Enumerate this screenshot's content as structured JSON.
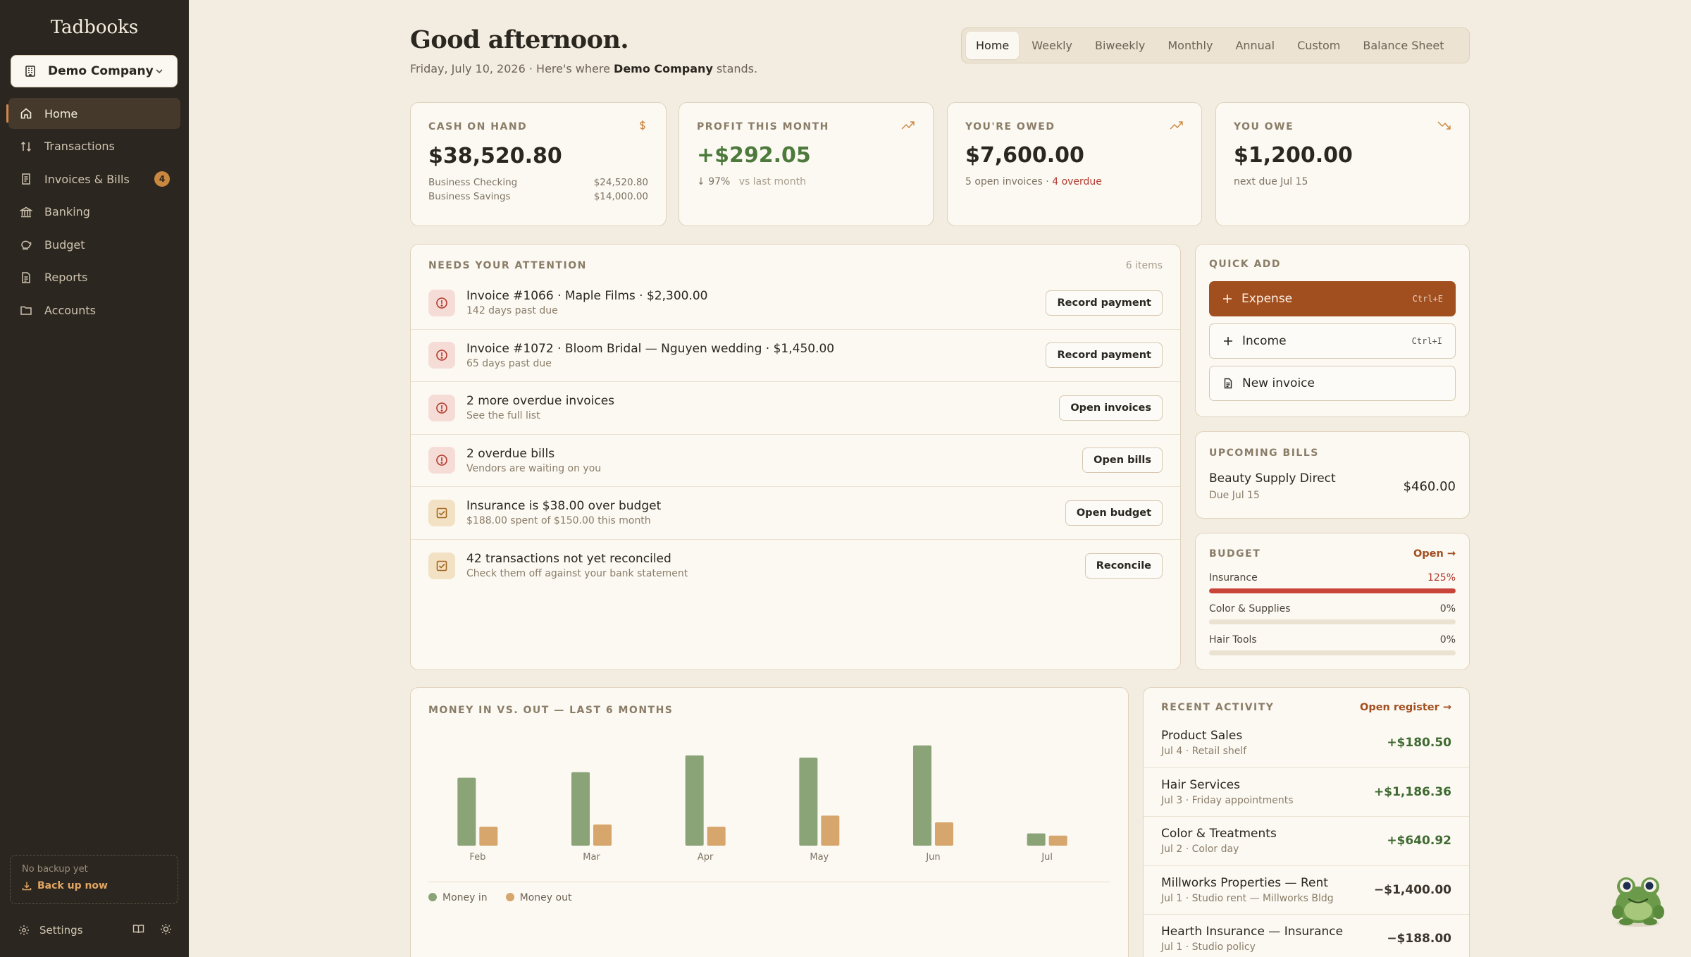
{
  "app": {
    "name": "Tadbooks"
  },
  "company": {
    "name": "Demo Company"
  },
  "nav": [
    {
      "label": "Home",
      "icon": "home-icon",
      "active": true
    },
    {
      "label": "Transactions",
      "icon": "transfer-icon"
    },
    {
      "label": "Invoices & Bills",
      "icon": "receipt-icon",
      "badge": "4"
    },
    {
      "label": "Banking",
      "icon": "bank-icon"
    },
    {
      "label": "Budget",
      "icon": "piggy-icon"
    },
    {
      "label": "Reports",
      "icon": "report-icon"
    },
    {
      "label": "Accounts",
      "icon": "folder-icon"
    }
  ],
  "backup": {
    "status": "No backup yet",
    "action": "Back up now"
  },
  "footer": {
    "settings": "Settings"
  },
  "header": {
    "greeting": "Good afternoon.",
    "date": "Friday, July 10, 2026 · Here's where",
    "company": "Demo Company",
    "suffix": "stands."
  },
  "tabs": [
    "Home",
    "Weekly",
    "Biweekly",
    "Monthly",
    "Annual",
    "Custom",
    "Balance Sheet"
  ],
  "kpis": {
    "cash": {
      "label": "Cash on hand",
      "value": "$38,520.80",
      "accounts": [
        {
          "name": "Business Checking",
          "amount": "$24,520.80"
        },
        {
          "name": "Business Savings",
          "amount": "$14,000.00"
        }
      ]
    },
    "profit": {
      "label": "Profit this month",
      "value": "+$292.05",
      "change": "97%",
      "vs": "vs last month"
    },
    "owed": {
      "label": "You're owed",
      "value": "$7,600.00",
      "note": "5 open invoices ·",
      "overdue": "4 overdue"
    },
    "owe": {
      "label": "You owe",
      "value": "$1,200.00",
      "note": "next due Jul 15"
    }
  },
  "attention": {
    "label": "Needs your attention",
    "count": "6 items",
    "items": [
      {
        "title": "Invoice #1066 · Maple Films · $2,300.00",
        "sub": "142 days past due",
        "action": "Record payment",
        "kind": "alert"
      },
      {
        "title": "Invoice #1072 · Bloom Bridal — Nguyen wedding · $1,450.00",
        "sub": "65 days past due",
        "action": "Record payment",
        "kind": "alert"
      },
      {
        "title": "2 more overdue invoices",
        "sub": "See the full list",
        "action": "Open invoices",
        "kind": "alert"
      },
      {
        "title": "2 overdue bills",
        "sub": "Vendors are waiting on you",
        "action": "Open bills",
        "kind": "alert"
      },
      {
        "title": "Insurance is $38.00 over budget",
        "sub": "$188.00 spent of $150.00 this month",
        "action": "Open budget",
        "kind": "check"
      },
      {
        "title": "42 transactions not yet reconciled",
        "sub": "Check them off against your bank statement",
        "action": "Reconcile",
        "kind": "check"
      }
    ]
  },
  "quick_add": {
    "label": "Quick add",
    "expense": {
      "label": "Expense",
      "shortcut": "Ctrl+E"
    },
    "income": {
      "label": "Income",
      "shortcut": "Ctrl+I"
    },
    "invoice": {
      "label": "New invoice"
    }
  },
  "upcoming": {
    "label": "Upcoming bills",
    "name": "Beauty Supply Direct",
    "due": "Due Jul 15",
    "amount": "$460.00"
  },
  "budget": {
    "label": "Budget",
    "link": "Open →",
    "items": [
      {
        "name": "Insurance",
        "pct": "125%",
        "fill": 1.0
      },
      {
        "name": "Color & Supplies",
        "pct": "0%",
        "fill": 0
      },
      {
        "name": "Hair Tools",
        "pct": "0%",
        "fill": 0
      }
    ]
  },
  "chart_data": {
    "type": "bar",
    "title": "Money in vs. out — last 6 months",
    "categories": [
      "Feb",
      "Mar",
      "Apr",
      "May",
      "Jun",
      "Jul"
    ],
    "series": [
      {
        "name": "Money in",
        "color": "#8aa377",
        "values": [
          6100,
          6600,
          8100,
          7900,
          9000,
          1100
        ]
      },
      {
        "name": "Money out",
        "color": "#d6a66c",
        "values": [
          1700,
          1900,
          1700,
          2700,
          2100,
          900
        ]
      }
    ],
    "ylim": [
      0,
      10000
    ]
  },
  "recent": {
    "label": "Recent activity",
    "link": "Open register →",
    "items": [
      {
        "name": "Product Sales",
        "meta": "Jul 4 · Retail shelf",
        "amount": "+$180.50",
        "sign": "pos"
      },
      {
        "name": "Hair Services",
        "meta": "Jul 3 · Friday appointments",
        "amount": "+$1,186.36",
        "sign": "pos"
      },
      {
        "name": "Color & Treatments",
        "meta": "Jul 2 · Color day",
        "amount": "+$640.92",
        "sign": "pos"
      },
      {
        "name": "Millworks Properties — Rent",
        "meta": "Jul 1 · Studio rent — Millworks Bldg",
        "amount": "−$1,400.00",
        "sign": "neg"
      },
      {
        "name": "Hearth Insurance — Insurance",
        "meta": "Jul 1 · Studio policy",
        "amount": "−$188.00",
        "sign": "neg"
      }
    ]
  }
}
